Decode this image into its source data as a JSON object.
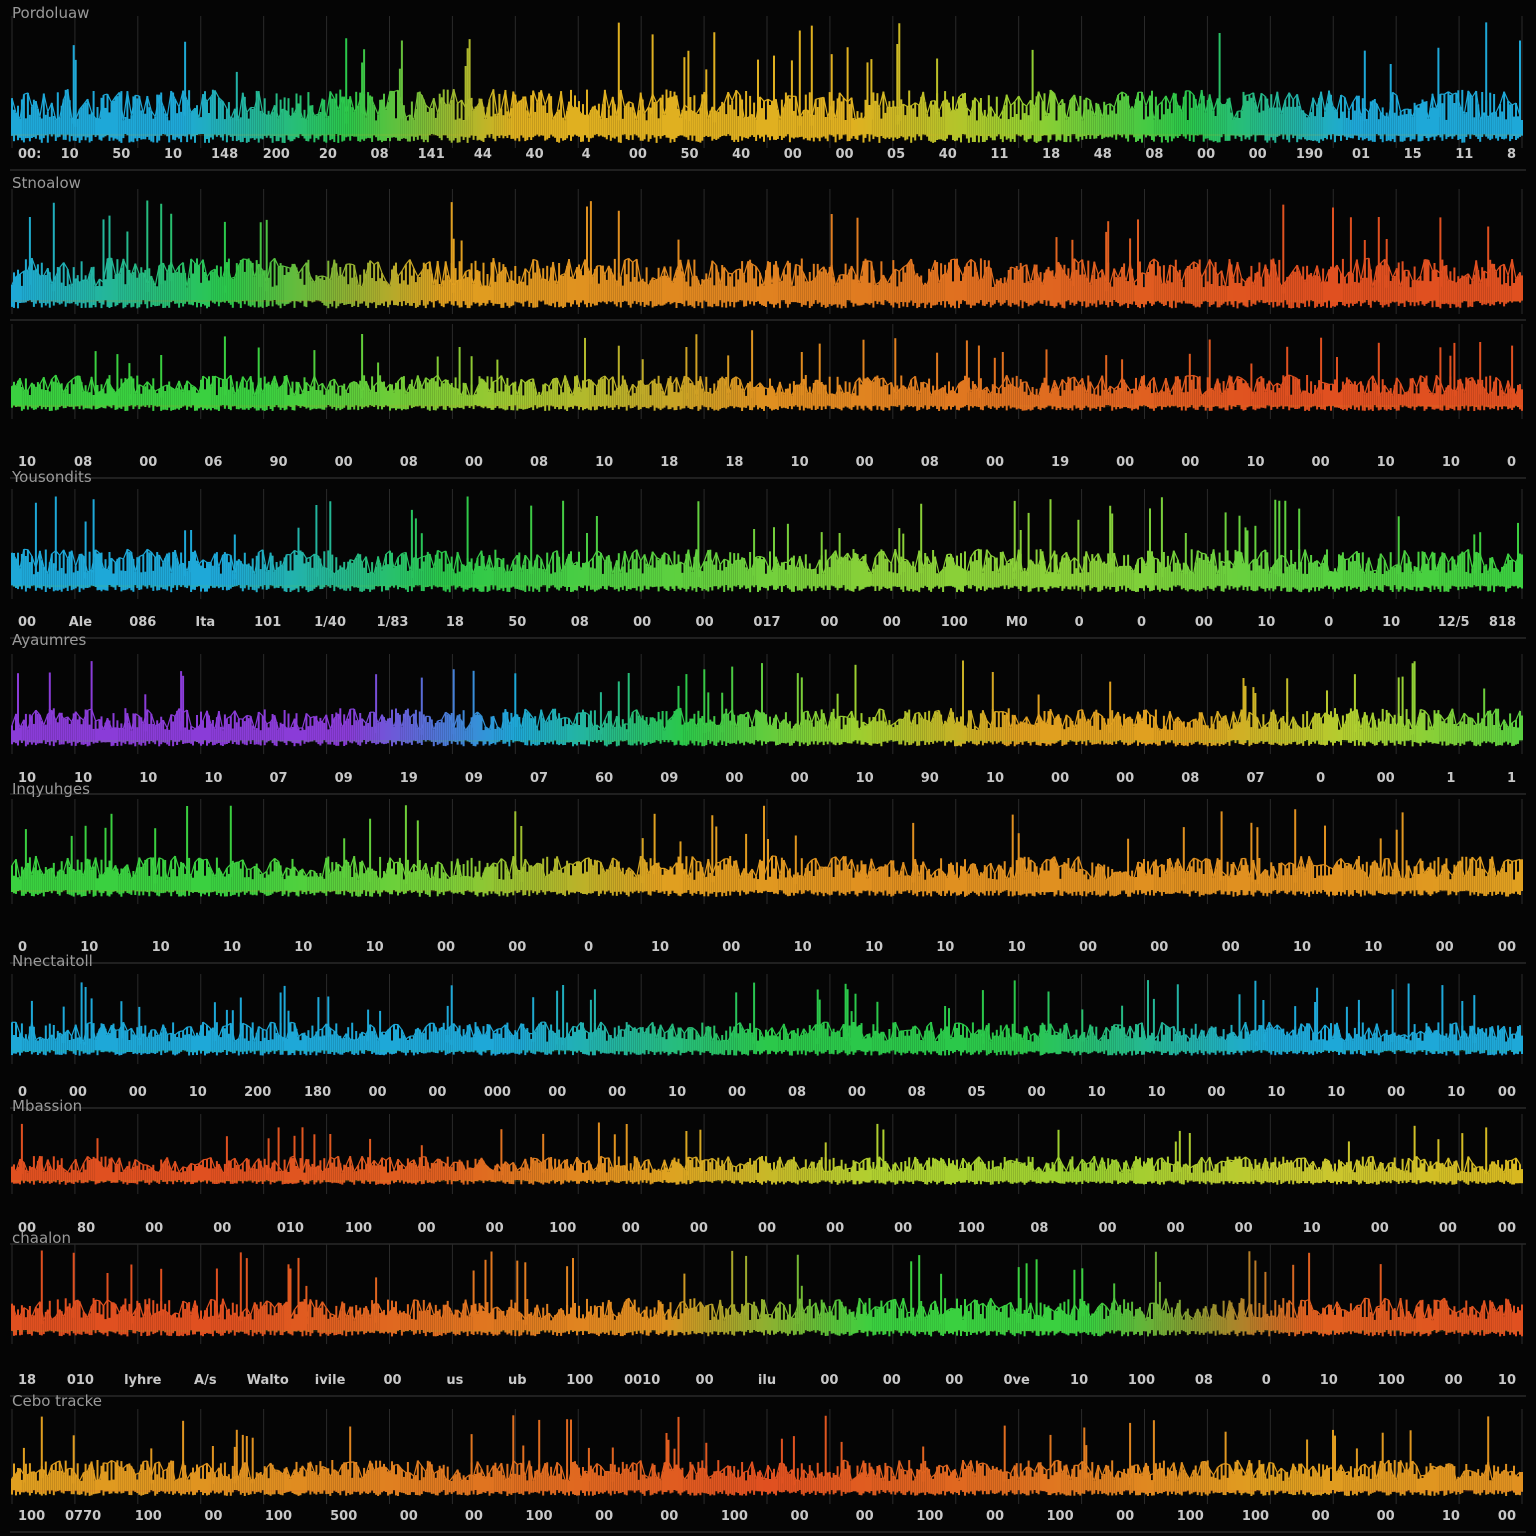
{
  "chart_data": [
    {
      "type": "line",
      "title": "Pordoluaw",
      "colors": [
        "#1ea8d8",
        "#1ea8d8",
        "#2bc84a",
        "#e0b020",
        "#e0b020",
        "#e0b020",
        "#9ad030",
        "#2bc84a",
        "#1ea8d8",
        "#1ea8d8"
      ],
      "x_ticks": [
        "00:",
        "10",
        "50",
        "10",
        "148",
        "200",
        "20",
        "08",
        "141",
        "44",
        "40",
        "4",
        "00",
        "50",
        "40",
        "00",
        "00",
        "05",
        "40",
        "11",
        "18",
        "48",
        "08",
        "00",
        "00",
        "190",
        "01",
        "15",
        "11",
        "8"
      ],
      "grid": true,
      "series": [
        {
          "style": "spiky-waveform"
        }
      ]
    },
    {
      "type": "line",
      "title": "Stnoalow",
      "colors": [
        "#1ea8d8",
        "#2bc84a",
        "#e0a020",
        "#e08a20",
        "#e07a20",
        "#e06020",
        "#e05020",
        "#e05020"
      ],
      "x_ticks": [],
      "grid": true,
      "series": [
        {
          "style": "spiky-waveform"
        }
      ]
    },
    {
      "type": "line",
      "title": "",
      "colors": [
        "#3ad040",
        "#3ad040",
        "#a0c830",
        "#e09020",
        "#e07020",
        "#e05020",
        "#e05020"
      ],
      "x_ticks": [
        "10",
        "08",
        "00",
        "06",
        "90",
        "00",
        "08",
        "00",
        "08",
        "10",
        "18",
        "18",
        "10",
        "00",
        "08",
        "00",
        "19",
        "00",
        "00",
        "10",
        "00",
        "10",
        "10",
        "0"
      ],
      "grid": true,
      "series": [
        {
          "style": "spiky-waveform"
        }
      ]
    },
    {
      "type": "line",
      "title": "Yousondits",
      "colors": [
        "#1ea8d8",
        "#1ea8d8",
        "#2bc84a",
        "#5ad040",
        "#8ad038",
        "#8ad038",
        "#5ad040",
        "#3ad040"
      ],
      "x_ticks": [
        "00",
        "Ale",
        "086",
        "Ita",
        "101",
        "1/40",
        "1/83",
        "18",
        "50",
        "08",
        "00",
        "00",
        "017",
        "00",
        "00",
        "100",
        "M0",
        "0",
        "0",
        "00",
        "10",
        "0",
        "10",
        "12/5",
        "818"
      ],
      "grid": true,
      "series": [
        {
          "style": "spiky-waveform"
        }
      ]
    },
    {
      "type": "line",
      "title": "Ayaumres",
      "colors": [
        "#8a3cd8",
        "#8a3cd8",
        "#8a3cd8",
        "#1ea8d8",
        "#2bc84a",
        "#9ad030",
        "#e0a020",
        "#e0a020",
        "#b0d030",
        "#5ad040"
      ],
      "x_ticks": [
        "10",
        "10",
        "10",
        "10",
        "07",
        "09",
        "19",
        "09",
        "07",
        "60",
        "09",
        "00",
        "00",
        "10",
        "90",
        "10",
        "00",
        "00",
        "08",
        "07",
        "0",
        "00",
        "1",
        "1"
      ],
      "grid": true,
      "series": [
        {
          "style": "spiky-waveform"
        }
      ]
    },
    {
      "type": "line",
      "title": "Inqyuhges",
      "colors": [
        "#3ad040",
        "#3ad040",
        "#7ad038",
        "#e0a020",
        "#e09020",
        "#e09020",
        "#e09020",
        "#e0a020"
      ],
      "x_ticks": [
        "0",
        "10",
        "10",
        "10",
        "10",
        "10",
        "00",
        "00",
        "0",
        "10",
        "00",
        "10",
        "10",
        "10",
        "10",
        "00",
        "00",
        "00",
        "10",
        "10",
        "00",
        "00"
      ],
      "grid": true,
      "series": [
        {
          "style": "spiky-waveform"
        }
      ]
    },
    {
      "type": "line",
      "title": "Nnectaitoll",
      "colors": [
        "#1ea8d8",
        "#1ea8d8",
        "#1ea8d8",
        "#2bc84a",
        "#2bc84a",
        "#1ea8d8",
        "#1ea8d8"
      ],
      "x_ticks": [
        "0",
        "00",
        "00",
        "10",
        "200",
        "180",
        "00",
        "00",
        "000",
        "00",
        "00",
        "10",
        "00",
        "08",
        "00",
        "08",
        "05",
        "00",
        "10",
        "10",
        "00",
        "10",
        "10",
        "00",
        "10",
        "00"
      ],
      "grid": true,
      "series": [
        {
          "style": "spiky-waveform"
        }
      ]
    },
    {
      "type": "line",
      "title": "Mbassion",
      "colors": [
        "#e05020",
        "#e05020",
        "#e06020",
        "#e0a020",
        "#b0d030",
        "#9ad030",
        "#c8c830",
        "#d8b820"
      ],
      "x_ticks": [
        "00",
        "80",
        "00",
        "00",
        "010",
        "100",
        "00",
        "00",
        "100",
        "00",
        "00",
        "00",
        "00",
        "00",
        "100",
        "08",
        "00",
        "00",
        "00",
        "10",
        "00",
        "00",
        "00"
      ],
      "grid": true,
      "series": [
        {
          "style": "spiky-waveform"
        }
      ]
    },
    {
      "type": "line",
      "title": "chaalon",
      "colors": [
        "#e05020",
        "#e05020",
        "#e07020",
        "#e09020",
        "#3ad040",
        "#3ad040",
        "#e06020",
        "#e05020"
      ],
      "x_ticks": [
        "18",
        "010",
        "lyhre",
        "A/s",
        "Walto",
        "ivile",
        "00",
        "us",
        "ub",
        "100",
        "0010",
        "00",
        "ilu",
        "00",
        "00",
        "00",
        "0ve",
        "10",
        "100",
        "08",
        "0",
        "10",
        "100",
        "00",
        "10"
      ],
      "grid": true,
      "series": [
        {
          "style": "spiky-waveform"
        }
      ]
    },
    {
      "type": "line",
      "title": "Cebo tracke",
      "colors": [
        "#e0a020",
        "#e09020",
        "#e07020",
        "#e05020",
        "#e07020",
        "#e0a020",
        "#e09020"
      ],
      "x_ticks": [
        "100",
        "0770",
        "100",
        "00",
        "100",
        "500",
        "00",
        "00",
        "100",
        "00",
        "00",
        "100",
        "00",
        "00",
        "100",
        "00",
        "100",
        "00",
        "100",
        "100",
        "00",
        "00",
        "10",
        "00"
      ],
      "grid": true,
      "series": [
        {
          "style": "spiky-waveform"
        }
      ]
    }
  ]
}
